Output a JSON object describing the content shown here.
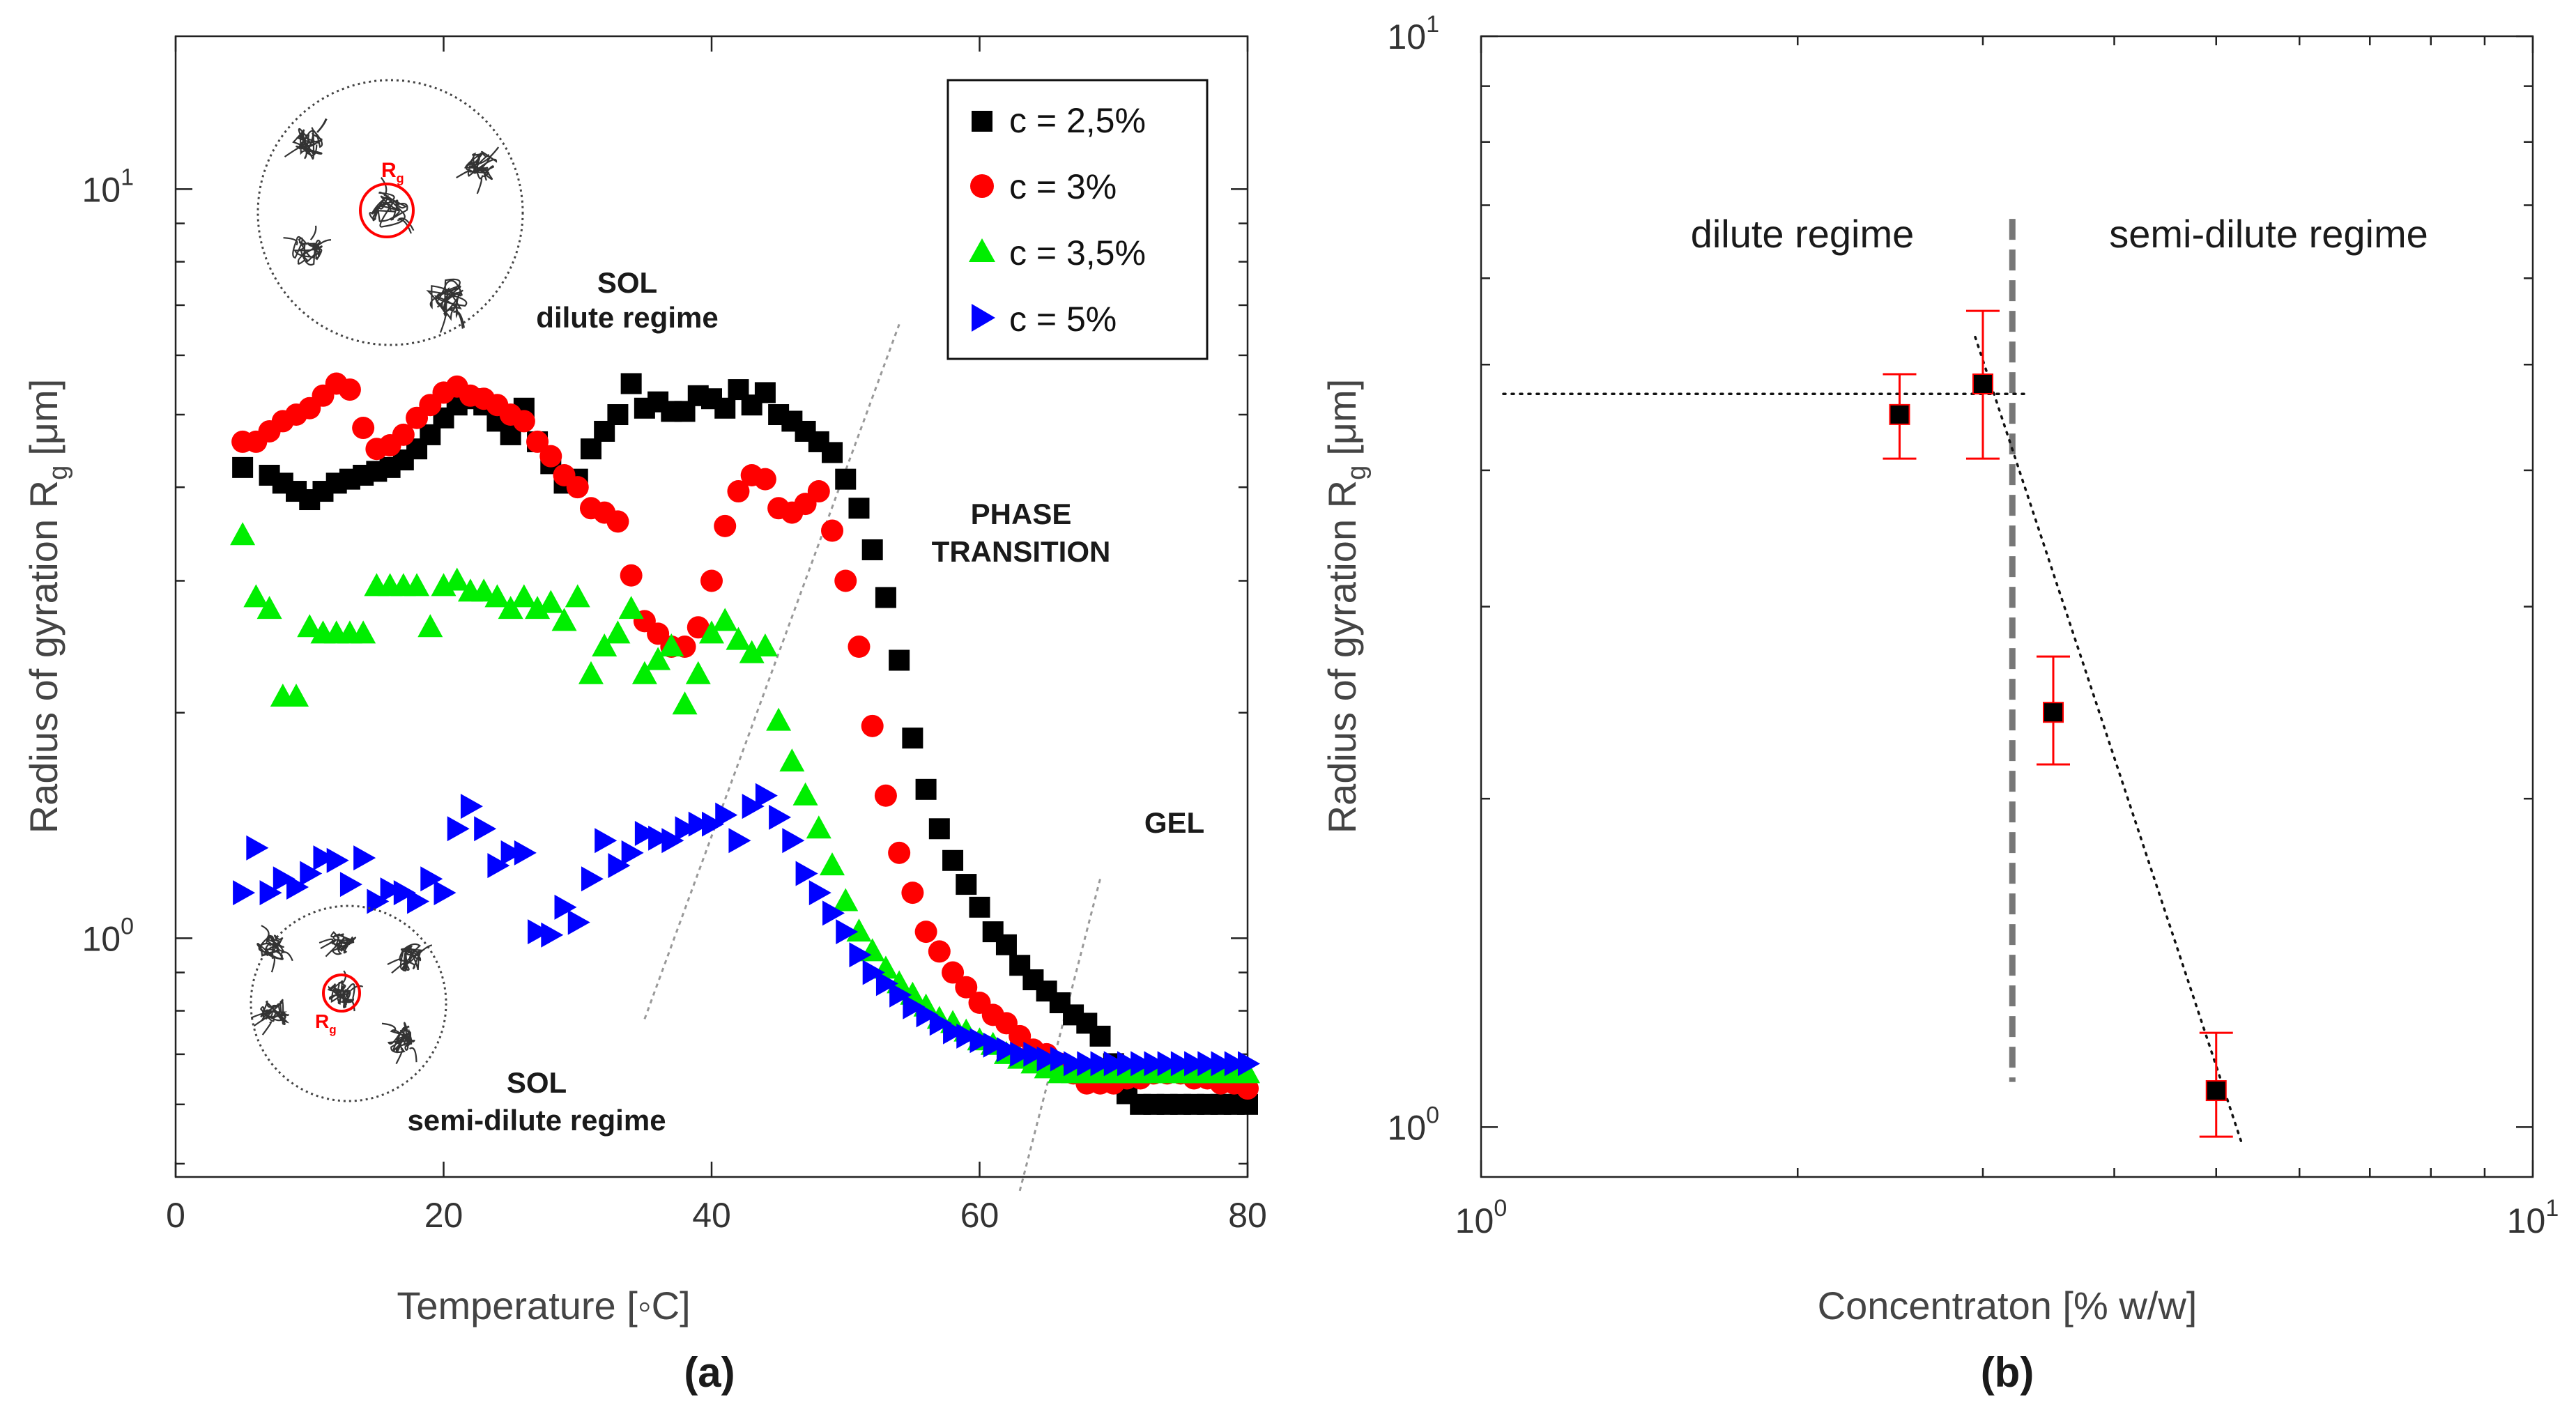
{
  "chart_data": [
    {
      "id": "a",
      "type": "scatter",
      "subplot_label": "(a)",
      "xlabel": "Temperature [◦C]",
      "ylabel": "Radius of gyration R",
      "ylabel_subscript": "g",
      "ylabel_unit": "[μm]",
      "xlim": [
        0,
        80
      ],
      "ylim": [
        0.48,
        16
      ],
      "yscale": "log",
      "xticks": [
        0,
        20,
        40,
        60,
        80
      ],
      "xtick_labels": [
        "0",
        "20",
        "40",
        "60",
        "80"
      ],
      "ytick_labels": [
        {
          "value": 1,
          "base": "10",
          "exp": "0"
        },
        {
          "value": 10,
          "base": "10",
          "exp": "1"
        }
      ],
      "legend_position": "top-right",
      "series": [
        {
          "name": "c = 2,5%",
          "color": "#000000",
          "marker": "square",
          "x": [
            5,
            7,
            8,
            9,
            10,
            11,
            12,
            13,
            14,
            15,
            16,
            17,
            18,
            19,
            20,
            21,
            22,
            23,
            24,
            25,
            26,
            27,
            28,
            29,
            30,
            31,
            32,
            33,
            34,
            35,
            36,
            37,
            38,
            39,
            40,
            41,
            42,
            43,
            44,
            45,
            46,
            47,
            48,
            49,
            50,
            51,
            52,
            53,
            54,
            55,
            56,
            57,
            58,
            59,
            60,
            61,
            62,
            63,
            64,
            65,
            66,
            67,
            68,
            69,
            70,
            71,
            72,
            73,
            74,
            75,
            76,
            77,
            78,
            79,
            80
          ],
          "y": [
            4.25,
            4.15,
            4.05,
            3.95,
            3.85,
            3.95,
            4.05,
            4.1,
            4.15,
            4.2,
            4.25,
            4.35,
            4.5,
            4.7,
            4.95,
            5.15,
            5.25,
            5.15,
            4.9,
            4.7,
            5.1,
            4.6,
            4.3,
            4.05,
            4.1,
            4.5,
            4.75,
            5.0,
            5.5,
            5.1,
            5.2,
            5.05,
            5.05,
            5.3,
            5.25,
            5.1,
            5.4,
            5.15,
            5.35,
            5.0,
            4.9,
            4.75,
            4.6,
            4.45,
            4.1,
            3.75,
            3.3,
            2.85,
            2.35,
            1.85,
            1.58,
            1.4,
            1.27,
            1.18,
            1.1,
            1.02,
            0.98,
            0.92,
            0.88,
            0.85,
            0.82,
            0.79,
            0.77,
            0.74,
            0.68,
            0.62,
            0.6,
            0.6,
            0.6,
            0.6,
            0.6,
            0.6,
            0.6,
            0.6,
            0.6
          ]
        },
        {
          "name": "c = 3%",
          "color": "#ff0000",
          "marker": "circle",
          "x": [
            5,
            6,
            7,
            8,
            9,
            10,
            11,
            12,
            13,
            14,
            15,
            16,
            17,
            18,
            19,
            20,
            21,
            22,
            23,
            24,
            25,
            26,
            27,
            28,
            29,
            30,
            31,
            32,
            33,
            34,
            35,
            36,
            37,
            38,
            39,
            40,
            41,
            42,
            43,
            44,
            45,
            46,
            47,
            48,
            49,
            50,
            51,
            52,
            53,
            54,
            55,
            56,
            57,
            58,
            59,
            60,
            61,
            62,
            63,
            64,
            65,
            66,
            67,
            68,
            69,
            70,
            71,
            72,
            73,
            74,
            75,
            76,
            77,
            78,
            79,
            80
          ],
          "y": [
            4.6,
            4.6,
            4.75,
            4.9,
            5.0,
            5.1,
            5.3,
            5.5,
            5.4,
            4.8,
            4.5,
            4.55,
            4.7,
            4.95,
            5.15,
            5.35,
            5.45,
            5.3,
            5.25,
            5.15,
            5.0,
            4.9,
            4.6,
            4.4,
            4.15,
            4.0,
            3.75,
            3.7,
            3.6,
            3.05,
            2.65,
            2.55,
            2.45,
            2.45,
            2.6,
            3.0,
            3.55,
            3.95,
            4.15,
            4.1,
            3.75,
            3.7,
            3.8,
            3.95,
            3.5,
            3.0,
            2.45,
            1.92,
            1.55,
            1.3,
            1.15,
            1.02,
            0.96,
            0.9,
            0.86,
            0.82,
            0.79,
            0.77,
            0.74,
            0.71,
            0.7,
            0.68,
            0.66,
            0.64,
            0.64,
            0.64,
            0.65,
            0.65,
            0.66,
            0.66,
            0.66,
            0.65,
            0.65,
            0.64,
            0.64,
            0.63
          ]
        },
        {
          "name": "c = 3,5%",
          "color": "#00ee00",
          "marker": "triangle-up",
          "x": [
            5,
            6,
            7,
            8,
            9,
            10,
            11,
            12,
            13,
            14,
            15,
            16,
            17,
            18,
            19,
            20,
            21,
            22,
            23,
            24,
            25,
            26,
            27,
            28,
            29,
            30,
            31,
            32,
            33,
            34,
            35,
            36,
            37,
            38,
            39,
            40,
            41,
            42,
            43,
            44,
            45,
            46,
            47,
            48,
            49,
            50,
            51,
            52,
            53,
            54,
            55,
            56,
            57,
            58,
            59,
            60,
            61,
            62,
            63,
            64,
            65,
            66,
            67,
            68,
            69,
            70,
            71,
            72,
            73,
            74,
            75,
            76,
            77,
            78,
            79,
            80
          ],
          "y": [
            3.45,
            2.85,
            2.75,
            2.1,
            2.1,
            2.6,
            2.55,
            2.55,
            2.55,
            2.55,
            2.95,
            2.95,
            2.95,
            2.95,
            2.6,
            2.95,
            3.0,
            2.9,
            2.9,
            2.85,
            2.75,
            2.85,
            2.75,
            2.8,
            2.65,
            2.85,
            2.25,
            2.45,
            2.55,
            2.75,
            2.25,
            2.35,
            2.45,
            2.05,
            2.25,
            2.55,
            2.65,
            2.5,
            2.4,
            2.45,
            1.95,
            1.72,
            1.55,
            1.4,
            1.25,
            1.12,
            1.02,
            0.96,
            0.91,
            0.87,
            0.84,
            0.81,
            0.78,
            0.77,
            0.75,
            0.73,
            0.72,
            0.7,
            0.69,
            0.68,
            0.67,
            0.66,
            0.66,
            0.66,
            0.66,
            0.66,
            0.66,
            0.66,
            0.66,
            0.66,
            0.66,
            0.66,
            0.66,
            0.66,
            0.66,
            0.66
          ]
        },
        {
          "name": "c = 5%",
          "color": "#0000ff",
          "marker": "triangle-right",
          "x": [
            5,
            6,
            7,
            8,
            9,
            10,
            11,
            12,
            13,
            14,
            15,
            16,
            17,
            18,
            19,
            20,
            21,
            22,
            23,
            24,
            25,
            26,
            27,
            28,
            29,
            30,
            31,
            32,
            33,
            34,
            35,
            36,
            37,
            38,
            39,
            40,
            41,
            42,
            43,
            44,
            45,
            46,
            47,
            48,
            49,
            50,
            51,
            52,
            53,
            54,
            55,
            56,
            57,
            58,
            59,
            60,
            61,
            62,
            63,
            64,
            65,
            66,
            67,
            68,
            69,
            70,
            71,
            72,
            73,
            74,
            75,
            76,
            77,
            78,
            79,
            80
          ],
          "y": [
            1.15,
            1.32,
            1.15,
            1.2,
            1.17,
            1.22,
            1.28,
            1.27,
            1.18,
            1.28,
            1.12,
            1.16,
            1.15,
            1.12,
            1.2,
            1.15,
            1.4,
            1.5,
            1.4,
            1.25,
            1.3,
            1.3,
            1.02,
            1.01,
            1.1,
            1.05,
            1.2,
            1.35,
            1.25,
            1.3,
            1.38,
            1.36,
            1.35,
            1.4,
            1.42,
            1.42,
            1.46,
            1.35,
            1.5,
            1.55,
            1.45,
            1.35,
            1.22,
            1.15,
            1.08,
            1.02,
            0.95,
            0.9,
            0.87,
            0.84,
            0.81,
            0.79,
            0.77,
            0.75,
            0.74,
            0.73,
            0.72,
            0.71,
            0.7,
            0.7,
            0.69,
            0.69,
            0.68,
            0.68,
            0.68,
            0.68,
            0.68,
            0.68,
            0.68,
            0.68,
            0.68,
            0.68,
            0.68,
            0.68,
            0.68,
            0.68
          ]
        }
      ],
      "annotations": {
        "sol_dilute_line1": "SOL",
        "sol_dilute_line2": "dilute regime",
        "phase_line1": "PHASE",
        "phase_line2": "TRANSITION",
        "gel": "GEL",
        "sol_semidilute_line1": "SOL",
        "sol_semidilute_line2": "semi-dilute regime",
        "inset_top_label": "R",
        "inset_top_label_sub": "g",
        "inset_bottom_label": "R",
        "inset_bottom_label_sub": "g"
      },
      "guide_lines": [
        {
          "x": [
            35,
            54
          ],
          "y": [
            0.78,
            6.6
          ]
        },
        {
          "x": [
            63,
            69
          ],
          "y": [
            0.46,
            1.2
          ]
        }
      ]
    },
    {
      "id": "b",
      "type": "scatter",
      "subplot_label": "(b)",
      "xlabel": "Concentraton [% w/w]",
      "ylabel": "Radius of gyration R",
      "ylabel_subscript": "g",
      "ylabel_unit": "[μm]",
      "xscale": "log",
      "yscale": "log",
      "xlim": [
        1,
        10
      ],
      "ylim": [
        0.9,
        10
      ],
      "xtick_labels": [
        {
          "value": 1,
          "base": "10",
          "exp": "0"
        },
        {
          "value": 10,
          "base": "10",
          "exp": "1"
        }
      ],
      "ytick_labels": [
        {
          "value": 1,
          "base": "10",
          "exp": "0"
        },
        {
          "value": 10,
          "base": "10",
          "exp": "1"
        }
      ],
      "series": [
        {
          "name": "Rg",
          "color": "#000000",
          "error_color": "#ff0000",
          "marker": "square",
          "x": [
            2.5,
            3.0,
            3.5,
            5.0
          ],
          "y": [
            4.5,
            4.8,
            2.4,
            1.08
          ],
          "yerr_low": [
            4.1,
            4.1,
            2.15,
            0.98
          ],
          "yerr_high": [
            4.9,
            5.6,
            2.7,
            1.22
          ]
        }
      ],
      "regime_divider_x": 3.2,
      "regime_labels": {
        "left": "dilute regime",
        "right": "semi-dilute regime"
      },
      "fit_lines": [
        {
          "x": [
            1.05,
            3.3
          ],
          "y": [
            4.7,
            4.7
          ]
        },
        {
          "x": [
            2.95,
            5.3
          ],
          "y": [
            5.3,
            0.96
          ]
        }
      ]
    }
  ]
}
